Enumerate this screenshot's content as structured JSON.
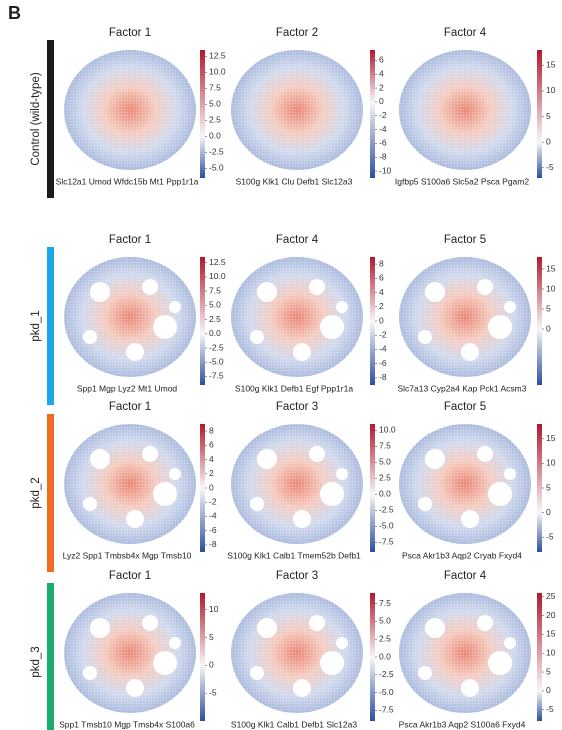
{
  "panel_label": "B",
  "rows": [
    {
      "label": "Control (wild-type)",
      "color": "#1a1a1a",
      "panels": [
        {
          "title": "Factor 1",
          "genes": "Slc12a1 Umod Wfdc15b Mt1 Ppp1r1a",
          "colorbar": {
            "lim": [
              -6.5,
              13.5
            ],
            "ticks": [
              12.5,
              {
                "value": 10,
                "label": "10.0"
              },
              7.5,
              {
                "value": 5,
                "label": "5.0"
              },
              2.5,
              {
                "value": 0,
                "label": "0.0"
              },
              -2.5,
              {
                "value": -5,
                "label": "-5.0"
              }
            ]
          }
        },
        {
          "title": "Factor 2",
          "genes": "S100g Klk1 Clu Defb1 Slc12a3",
          "colorbar": {
            "lim": [
              -11,
              7.5
            ],
            "ticks": [
              6,
              4,
              2,
              0,
              -2,
              -4,
              -6,
              -8,
              -10
            ]
          }
        },
        {
          "title": "Factor 4",
          "genes": "Igfbp5 S100a6 Slc5a2 Psca Pgam2",
          "colorbar": {
            "lim": [
              -7,
              18
            ],
            "ticks": [
              15,
              10,
              5,
              0,
              -5
            ]
          }
        }
      ]
    },
    {
      "label": "pkd_1",
      "color": "#1ea7e6",
      "panels": [
        {
          "title": "Factor 1",
          "genes": "Spp1 Mgp Lyz2 Mt1 Umod",
          "colorbar": {
            "lim": [
              -9,
              13.5
            ],
            "ticks": [
              12.5,
              {
                "value": 10,
                "label": "10.0"
              },
              7.5,
              {
                "value": 5,
                "label": "5.0"
              },
              2.5,
              {
                "value": 0,
                "label": "0.0"
              },
              -2.5,
              {
                "value": -5,
                "label": "-5.0"
              },
              -7.5
            ]
          }
        },
        {
          "title": "Factor 4",
          "genes": "S100g Klk1 Defb1 Egf Ppp1r1a",
          "colorbar": {
            "lim": [
              -9,
              9
            ],
            "ticks": [
              8,
              6,
              4,
              2,
              0,
              -2,
              -4,
              -6,
              -8
            ]
          }
        },
        {
          "title": "Factor 5",
          "genes": "Slc7a13 Cyp2a4 Kap Pck1 Acsm3",
          "colorbar": {
            "lim": [
              -14,
              18
            ],
            "ticks": [
              15,
              10,
              5,
              0
            ]
          }
        }
      ]
    },
    {
      "label": "pkd_2",
      "color": "#f26b21",
      "panels": [
        {
          "title": "Factor 1",
          "genes": "Lyz2 Spp1 Tmbsb4x Mgp Tmsb10",
          "colorbar": {
            "lim": [
              -9,
              9
            ],
            "ticks": [
              8,
              6,
              4,
              2,
              0,
              -2,
              -4,
              -6,
              -8
            ]
          }
        },
        {
          "title": "Factor 3",
          "genes": "S100g Klk1 Calb1 Tmem52b Defb1",
          "colorbar": {
            "lim": [
              -9,
              11
            ],
            "ticks": [
              {
                "value": 10,
                "label": "10.0"
              },
              7.5,
              {
                "value": 5,
                "label": "5.0"
              },
              2.5,
              {
                "value": 0,
                "label": "0.0"
              },
              -2.5,
              {
                "value": -5,
                "label": "-5.0"
              },
              -7.5
            ]
          }
        },
        {
          "title": "Factor 5",
          "genes": "Psca Akr1b3 Aqp2 Cryab Fxyd4",
          "colorbar": {
            "lim": [
              -8,
              18
            ],
            "ticks": [
              15,
              10,
              5,
              0,
              -5
            ]
          }
        }
      ]
    },
    {
      "label": "pkd_3",
      "color": "#1bab6e",
      "panels": [
        {
          "title": "Factor 1",
          "genes": "Spp1 Tmsb10 Mgp Tmsb4x S100a6",
          "colorbar": {
            "lim": [
              -10,
              13
            ],
            "ticks": [
              10,
              5,
              0,
              -5
            ]
          }
        },
        {
          "title": "Factor 3",
          "genes": "S100g Klk1 Calb1 Defb1 Slc12a3",
          "colorbar": {
            "lim": [
              -9,
              9
            ],
            "ticks": [
              7.5,
              {
                "value": 5,
                "label": "5.0"
              },
              2.5,
              {
                "value": 0,
                "label": "0.0"
              },
              -2.5,
              {
                "value": -5,
                "label": "-5.0"
              },
              -7.5
            ]
          }
        },
        {
          "title": "Factor 4",
          "genes": "Psca Akr1b3 Aqp2 S100a6 Fxyd4",
          "colorbar": {
            "lim": [
              -8,
              26
            ],
            "ticks": [
              25,
              20,
              15,
              10,
              5,
              0,
              -5
            ]
          }
        }
      ]
    }
  ]
}
